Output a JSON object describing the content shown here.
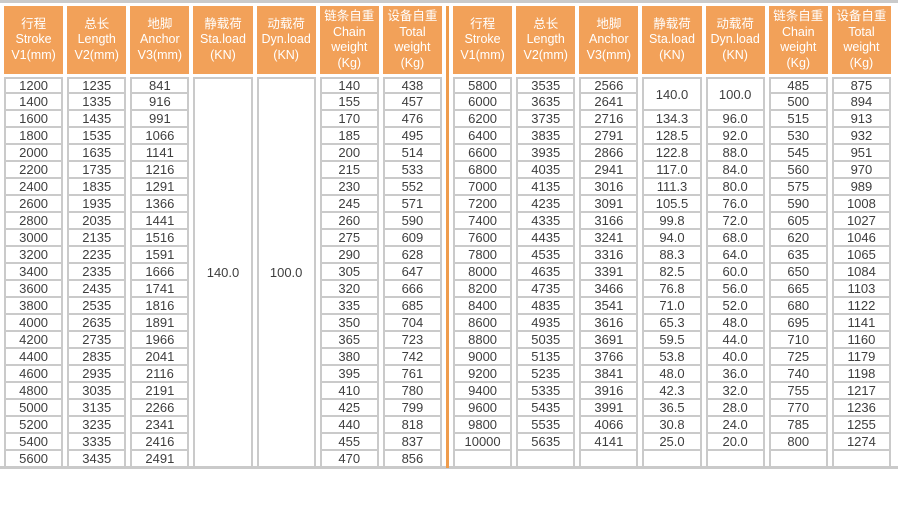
{
  "colors": {
    "header_bg": "#F2A159",
    "divider": "#EF9C4C",
    "border": "#CACACA",
    "text": "#3E3E3E",
    "header_text": "#FFFFFF"
  },
  "columns": [
    [
      "行程",
      "Stroke",
      "V1(mm)"
    ],
    [
      "总长",
      "Length",
      "V2(mm)"
    ],
    [
      "地脚",
      "Anchor",
      "V3(mm)"
    ],
    [
      "静载荷",
      "Sta.load",
      "(KN)"
    ],
    [
      "动载荷",
      "Dyn.load",
      "(KN)"
    ],
    [
      "链条自重",
      "Chain",
      "weight",
      "(Kg)"
    ],
    [
      "设备自重",
      "Total",
      "weight",
      "(Kg)"
    ]
  ],
  "left_table": {
    "merges": [
      {
        "row": 0,
        "col": 3,
        "value": "140.0",
        "span": 23
      },
      {
        "row": 0,
        "col": 4,
        "value": "100.0",
        "span": 23
      }
    ],
    "rows": [
      [
        1200,
        1235,
        841,
        null,
        null,
        140,
        438
      ],
      [
        1400,
        1335,
        916,
        null,
        null,
        155,
        457
      ],
      [
        1600,
        1435,
        991,
        null,
        null,
        170,
        476
      ],
      [
        1800,
        1535,
        1066,
        null,
        null,
        185,
        495
      ],
      [
        2000,
        1635,
        1141,
        null,
        null,
        200,
        514
      ],
      [
        2200,
        1735,
        1216,
        null,
        null,
        215,
        533
      ],
      [
        2400,
        1835,
        1291,
        null,
        null,
        230,
        552
      ],
      [
        2600,
        1935,
        1366,
        null,
        null,
        245,
        571
      ],
      [
        2800,
        2035,
        1441,
        null,
        null,
        260,
        590
      ],
      [
        3000,
        2135,
        1516,
        null,
        null,
        275,
        609
      ],
      [
        3200,
        2235,
        1591,
        null,
        null,
        290,
        628
      ],
      [
        3400,
        2335,
        1666,
        null,
        null,
        305,
        647
      ],
      [
        3600,
        2435,
        1741,
        null,
        null,
        320,
        666
      ],
      [
        3800,
        2535,
        1816,
        null,
        null,
        335,
        685
      ],
      [
        4000,
        2635,
        1891,
        null,
        null,
        350,
        704
      ],
      [
        4200,
        2735,
        1966,
        null,
        null,
        365,
        723
      ],
      [
        4400,
        2835,
        2041,
        null,
        null,
        380,
        742
      ],
      [
        4600,
        2935,
        2116,
        null,
        null,
        395,
        761
      ],
      [
        4800,
        3035,
        2191,
        null,
        null,
        410,
        780
      ],
      [
        5000,
        3135,
        2266,
        null,
        null,
        425,
        799
      ],
      [
        5200,
        3235,
        2341,
        null,
        null,
        440,
        818
      ],
      [
        5400,
        3335,
        2416,
        null,
        null,
        455,
        837
      ],
      [
        5600,
        3435,
        2491,
        null,
        null,
        470,
        856
      ]
    ]
  },
  "right_table": {
    "merges": [
      {
        "row": 0,
        "col": 3,
        "value": "140.0",
        "span": 2
      },
      {
        "row": 0,
        "col": 4,
        "value": "100.0",
        "span": 2
      }
    ],
    "rows": [
      [
        5800,
        3535,
        2566,
        null,
        null,
        485,
        875
      ],
      [
        6000,
        3635,
        2641,
        null,
        null,
        500,
        894
      ],
      [
        6200,
        3735,
        2716,
        "134.3",
        "96.0",
        515,
        913
      ],
      [
        6400,
        3835,
        2791,
        "128.5",
        "92.0",
        530,
        932
      ],
      [
        6600,
        3935,
        2866,
        "122.8",
        "88.0",
        545,
        951
      ],
      [
        6800,
        4035,
        2941,
        "117.0",
        "84.0",
        560,
        970
      ],
      [
        7000,
        4135,
        3016,
        "111.3",
        "80.0",
        575,
        989
      ],
      [
        7200,
        4235,
        3091,
        "105.5",
        "76.0",
        590,
        1008
      ],
      [
        7400,
        4335,
        3166,
        "99.8",
        "72.0",
        605,
        1027
      ],
      [
        7600,
        4435,
        3241,
        "94.0",
        "68.0",
        620,
        1046
      ],
      [
        7800,
        4535,
        3316,
        "88.3",
        "64.0",
        635,
        1065
      ],
      [
        8000,
        4635,
        3391,
        "82.5",
        "60.0",
        650,
        1084
      ],
      [
        8200,
        4735,
        3466,
        "76.8",
        "56.0",
        665,
        1103
      ],
      [
        8400,
        4835,
        3541,
        "71.0",
        "52.0",
        680,
        1122
      ],
      [
        8600,
        4935,
        3616,
        "65.3",
        "48.0",
        695,
        1141
      ],
      [
        8800,
        5035,
        3691,
        "59.5",
        "44.0",
        710,
        1160
      ],
      [
        9000,
        5135,
        3766,
        "53.8",
        "40.0",
        725,
        1179
      ],
      [
        9200,
        5235,
        3841,
        "48.0",
        "36.0",
        740,
        1198
      ],
      [
        9400,
        5335,
        3916,
        "42.3",
        "32.0",
        755,
        1217
      ],
      [
        9600,
        5435,
        3991,
        "36.5",
        "28.0",
        770,
        1236
      ],
      [
        9800,
        5535,
        4066,
        "30.8",
        "24.0",
        785,
        1255
      ],
      [
        10000,
        5635,
        4141,
        "25.0",
        "20.0",
        800,
        1274
      ],
      [
        "",
        "",
        "",
        "",
        "",
        "",
        ""
      ]
    ]
  }
}
